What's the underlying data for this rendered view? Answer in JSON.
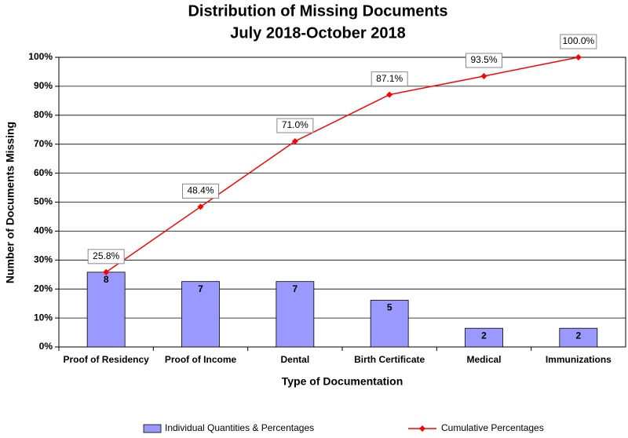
{
  "chart_data": {
    "type": "pareto",
    "title": "Distribution of Missing Documents",
    "subtitle": "July 2018-October 2018",
    "x_label": "Type of Documentation",
    "y_label": "Number of Documents Missing",
    "categories": [
      "Proof of Residency",
      "Proof of Income",
      "Dental",
      "Birth Certificate",
      "Medical",
      "Immunizations"
    ],
    "series": [
      {
        "name": "Individual Quantities & Percentages",
        "type": "bar",
        "color": "#9999ff",
        "axis": "y2",
        "values": [
          8,
          7,
          7,
          5,
          2,
          2
        ]
      },
      {
        "name": "Cumulative Percentages",
        "type": "line",
        "color": "#ff0000",
        "values": [
          25.8,
          48.4,
          71.0,
          87.1,
          93.5,
          100.0
        ],
        "value_labels": [
          "25.8%",
          "48.4%",
          "71.0%",
          "87.1%",
          "93.5%",
          "100.0%"
        ]
      }
    ],
    "ylim": [
      0,
      100
    ],
    "yticks": [
      {
        "value": 0,
        "label": "0%"
      },
      {
        "value": 10,
        "label": "10%"
      },
      {
        "value": 20,
        "label": "20%"
      },
      {
        "value": 30,
        "label": "30%"
      },
      {
        "value": 40,
        "label": "40%"
      },
      {
        "value": 50,
        "label": "50%"
      },
      {
        "value": 60,
        "label": "60%"
      },
      {
        "value": 70,
        "label": "70%"
      },
      {
        "value": 80,
        "label": "80%"
      },
      {
        "value": 90,
        "label": "90%"
      },
      {
        "value": 100,
        "label": "100%"
      }
    ],
    "y2lim": [
      0,
      31
    ],
    "grid": true,
    "legend": "bottom"
  }
}
